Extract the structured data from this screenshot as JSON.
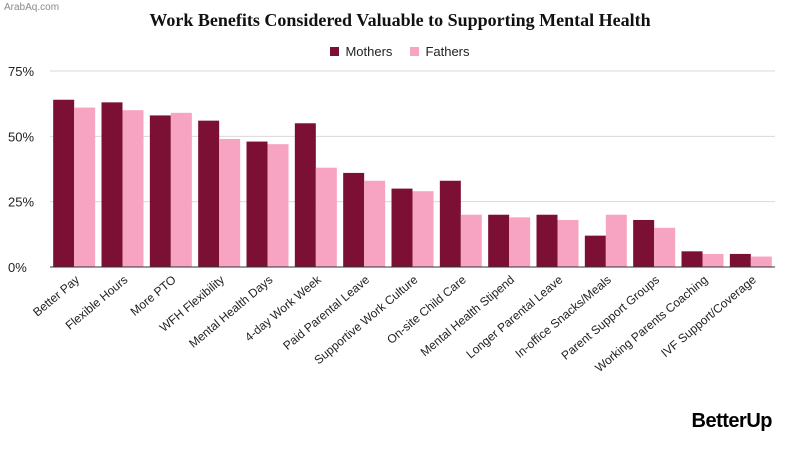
{
  "watermark": "ArabAq.com",
  "brand": "BetterUp",
  "colors": {
    "mothers": "#7c1034",
    "fathers": "#f7a3c2",
    "grid": "#d9d9d9",
    "axis": "#333333"
  },
  "chart_data": {
    "type": "bar",
    "title": "Work Benefits Considered Valuable to Supporting Mental Health",
    "xlabel": "",
    "ylabel": "",
    "ylim": [
      0,
      75
    ],
    "yticks": [
      0,
      25,
      50,
      75
    ],
    "ytick_labels": [
      "0%",
      "25%",
      "50%",
      "75%"
    ],
    "grid": true,
    "legend": "top-center",
    "categories": [
      "Better Pay",
      "Flexible Hours",
      "More PTO",
      "WFH Flexibility",
      "Mental Health Days",
      "4-day Work Week",
      "Paid Parental Leave",
      "Supportive Work Culture",
      "On-site Child Care",
      "Mental Health Stipend",
      "Longer Parental Leave",
      "In-office Snacks/Meals",
      "Parent Support Groups",
      "Working Parents Coaching",
      "IVF Support/Coverage"
    ],
    "series": [
      {
        "name": "Mothers",
        "values": [
          64,
          63,
          58,
          56,
          48,
          55,
          36,
          30,
          33,
          20,
          20,
          12,
          18,
          6,
          5
        ]
      },
      {
        "name": "Fathers",
        "values": [
          61,
          60,
          59,
          49,
          47,
          38,
          33,
          29,
          20,
          19,
          18,
          20,
          15,
          5,
          4
        ]
      }
    ]
  }
}
